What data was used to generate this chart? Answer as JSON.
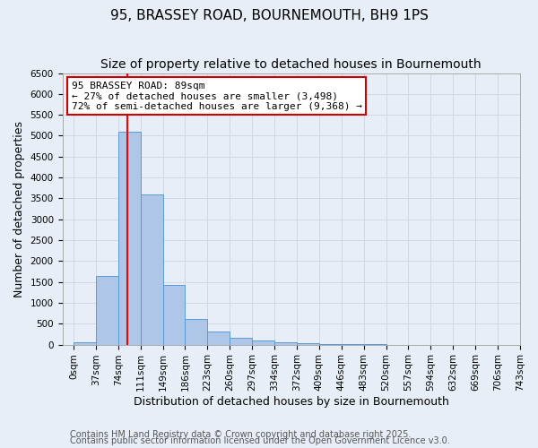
{
  "title1": "95, BRASSEY ROAD, BOURNEMOUTH, BH9 1PS",
  "title2": "Size of property relative to detached houses in Bournemouth",
  "xlabel": "Distribution of detached houses by size in Bournemouth",
  "ylabel": "Number of detached properties",
  "bar_values": [
    50,
    1650,
    5100,
    3600,
    1420,
    610,
    305,
    155,
    105,
    65,
    30,
    15,
    5,
    3,
    2,
    1,
    0,
    0,
    0
  ],
  "bin_labels": [
    "0sqm",
    "37sqm",
    "74sqm",
    "111sqm",
    "149sqm",
    "186sqm",
    "223sqm",
    "260sqm",
    "297sqm",
    "334sqm",
    "372sqm",
    "409sqm",
    "446sqm",
    "483sqm",
    "520sqm",
    "557sqm",
    "594sqm",
    "632sqm",
    "669sqm",
    "706sqm",
    "743sqm"
  ],
  "bar_color": "#aec6e8",
  "bar_edge_color": "#5b9bd5",
  "red_line_x": 89,
  "bin_width": 37,
  "annotation_title": "95 BRASSEY ROAD: 89sqm",
  "annotation_line1": "← 27% of detached houses are smaller (3,498)",
  "annotation_line2": "72% of semi-detached houses are larger (9,368) →",
  "annotation_box_color": "#ffffff",
  "annotation_box_edge": "#cc0000",
  "ylim": [
    0,
    6500
  ],
  "yticks": [
    0,
    500,
    1000,
    1500,
    2000,
    2500,
    3000,
    3500,
    4000,
    4500,
    5000,
    5500,
    6000,
    6500
  ],
  "grid_color": "#d0d8e8",
  "background_color": "#e8eef8",
  "footer1": "Contains HM Land Registry data © Crown copyright and database right 2025.",
  "footer2": "Contains public sector information licensed under the Open Government Licence v3.0.",
  "title1_fontsize": 11,
  "title2_fontsize": 10,
  "xlabel_fontsize": 9,
  "ylabel_fontsize": 9,
  "tick_fontsize": 7.5,
  "annotation_fontsize": 8,
  "footer_fontsize": 7
}
